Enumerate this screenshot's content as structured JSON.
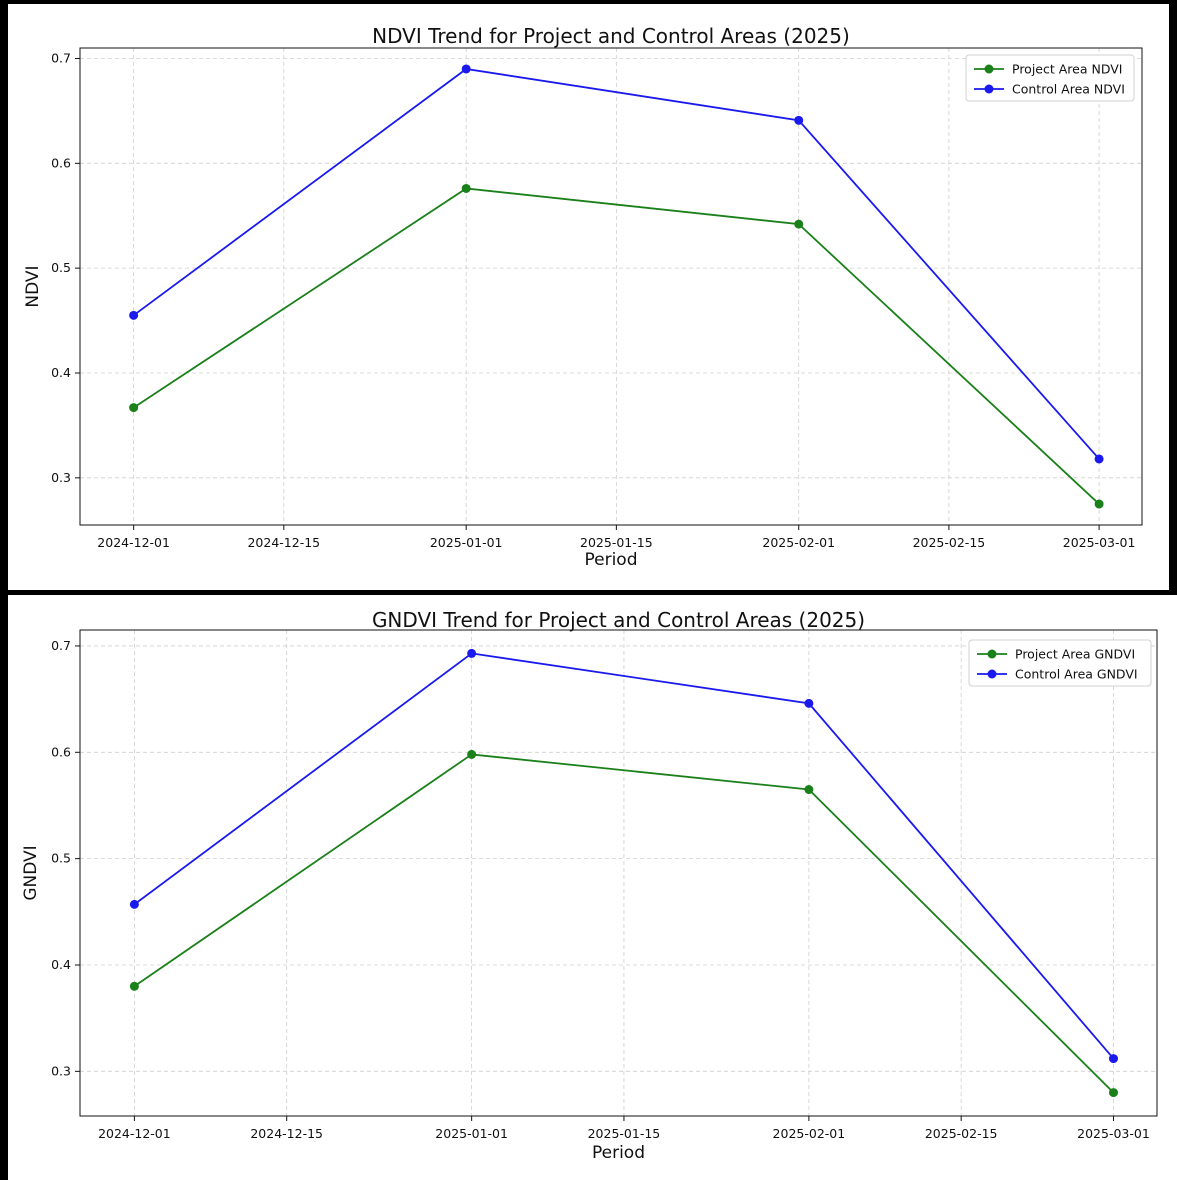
{
  "colors": {
    "project": "#1a801a",
    "control": "#1a1aef",
    "frame": "#000000",
    "grid": "#cfcfcf"
  },
  "chart_data": [
    {
      "type": "line",
      "title": "NDVI Trend for Project and Control Areas (2025)",
      "xlabel": "Period",
      "ylabel": "NDVI",
      "x": [
        "2024-12-01",
        "2025-01-01",
        "2025-02-01",
        "2025-03-01"
      ],
      "x_ticks": [
        "2024-12-01",
        "2024-12-15",
        "2025-01-01",
        "2025-01-15",
        "2025-02-01",
        "2025-02-15",
        "2025-03-01"
      ],
      "y_ticks": [
        0.3,
        0.4,
        0.5,
        0.6,
        0.7
      ],
      "ylim": [
        0.255,
        0.71
      ],
      "xlim": [
        "2024-11-26",
        "2025-03-05"
      ],
      "grid": true,
      "legend_position": "top-right",
      "series": [
        {
          "name": "Project Area NDVI",
          "color": "#1a801a",
          "marker": "circle",
          "values": [
            0.367,
            0.576,
            0.542,
            0.275
          ]
        },
        {
          "name": "Control Area NDVI",
          "color": "#1a1aef",
          "marker": "circle",
          "values": [
            0.455,
            0.69,
            0.641,
            0.318
          ]
        }
      ]
    },
    {
      "type": "line",
      "title": "GNDVI Trend for Project and Control Areas (2025)",
      "xlabel": "Period",
      "ylabel": "GNDVI",
      "x": [
        "2024-12-01",
        "2025-01-01",
        "2025-02-01",
        "2025-03-01"
      ],
      "x_ticks": [
        "2024-12-01",
        "2024-12-15",
        "2025-01-01",
        "2025-01-15",
        "2025-02-01",
        "2025-02-15",
        "2025-03-01"
      ],
      "y_ticks": [
        0.3,
        0.4,
        0.5,
        0.6,
        0.7
      ],
      "ylim": [
        0.258,
        0.715
      ],
      "xlim": [
        "2024-11-26",
        "2025-03-05"
      ],
      "grid": true,
      "legend_position": "top-right",
      "series": [
        {
          "name": "Project Area GNDVI",
          "color": "#1a801a",
          "marker": "circle",
          "values": [
            0.38,
            0.598,
            0.565,
            0.28
          ]
        },
        {
          "name": "Control Area GNDVI",
          "color": "#1a1aef",
          "marker": "circle",
          "values": [
            0.457,
            0.693,
            0.646,
            0.312
          ]
        }
      ]
    }
  ]
}
